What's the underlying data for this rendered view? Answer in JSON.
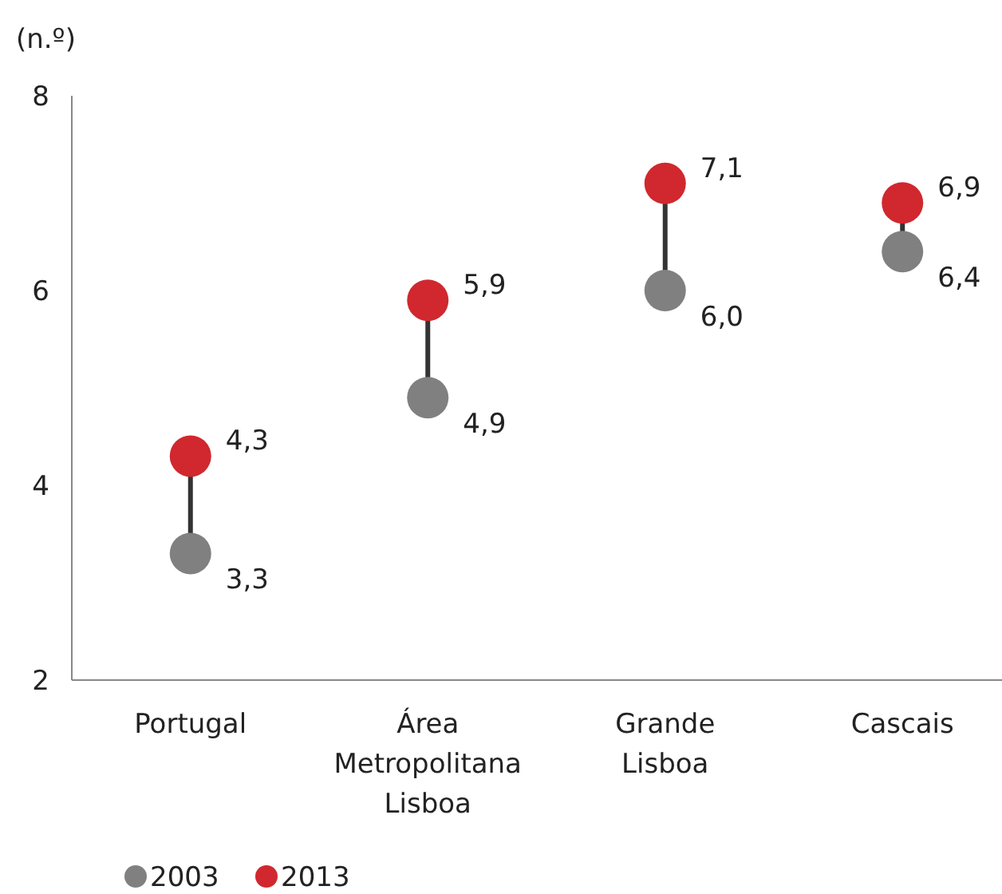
{
  "chart_data": {
    "type": "scatter",
    "ylabel": "(n.º)",
    "categories": [
      "Portugal",
      "Área Metropolitana Lisboa",
      "Grande Lisboa",
      "Cascais"
    ],
    "ylim": [
      2,
      8
    ],
    "yticks": [
      2,
      4,
      6,
      8
    ],
    "grid": false,
    "legend": "bottom left",
    "marker": "circle",
    "series": [
      {
        "name": "2003",
        "color": "#808080",
        "values": [
          3.3,
          4.9,
          6.0,
          6.4
        ],
        "value_labels": [
          "3,3",
          "4,9",
          "6,0",
          "6,4"
        ]
      },
      {
        "name": "2013",
        "color": "#d0282e",
        "values": [
          4.3,
          5.9,
          7.1,
          6.9
        ],
        "value_labels": [
          "4,3",
          "5,9",
          "7,1",
          "6,9"
        ]
      }
    ]
  }
}
